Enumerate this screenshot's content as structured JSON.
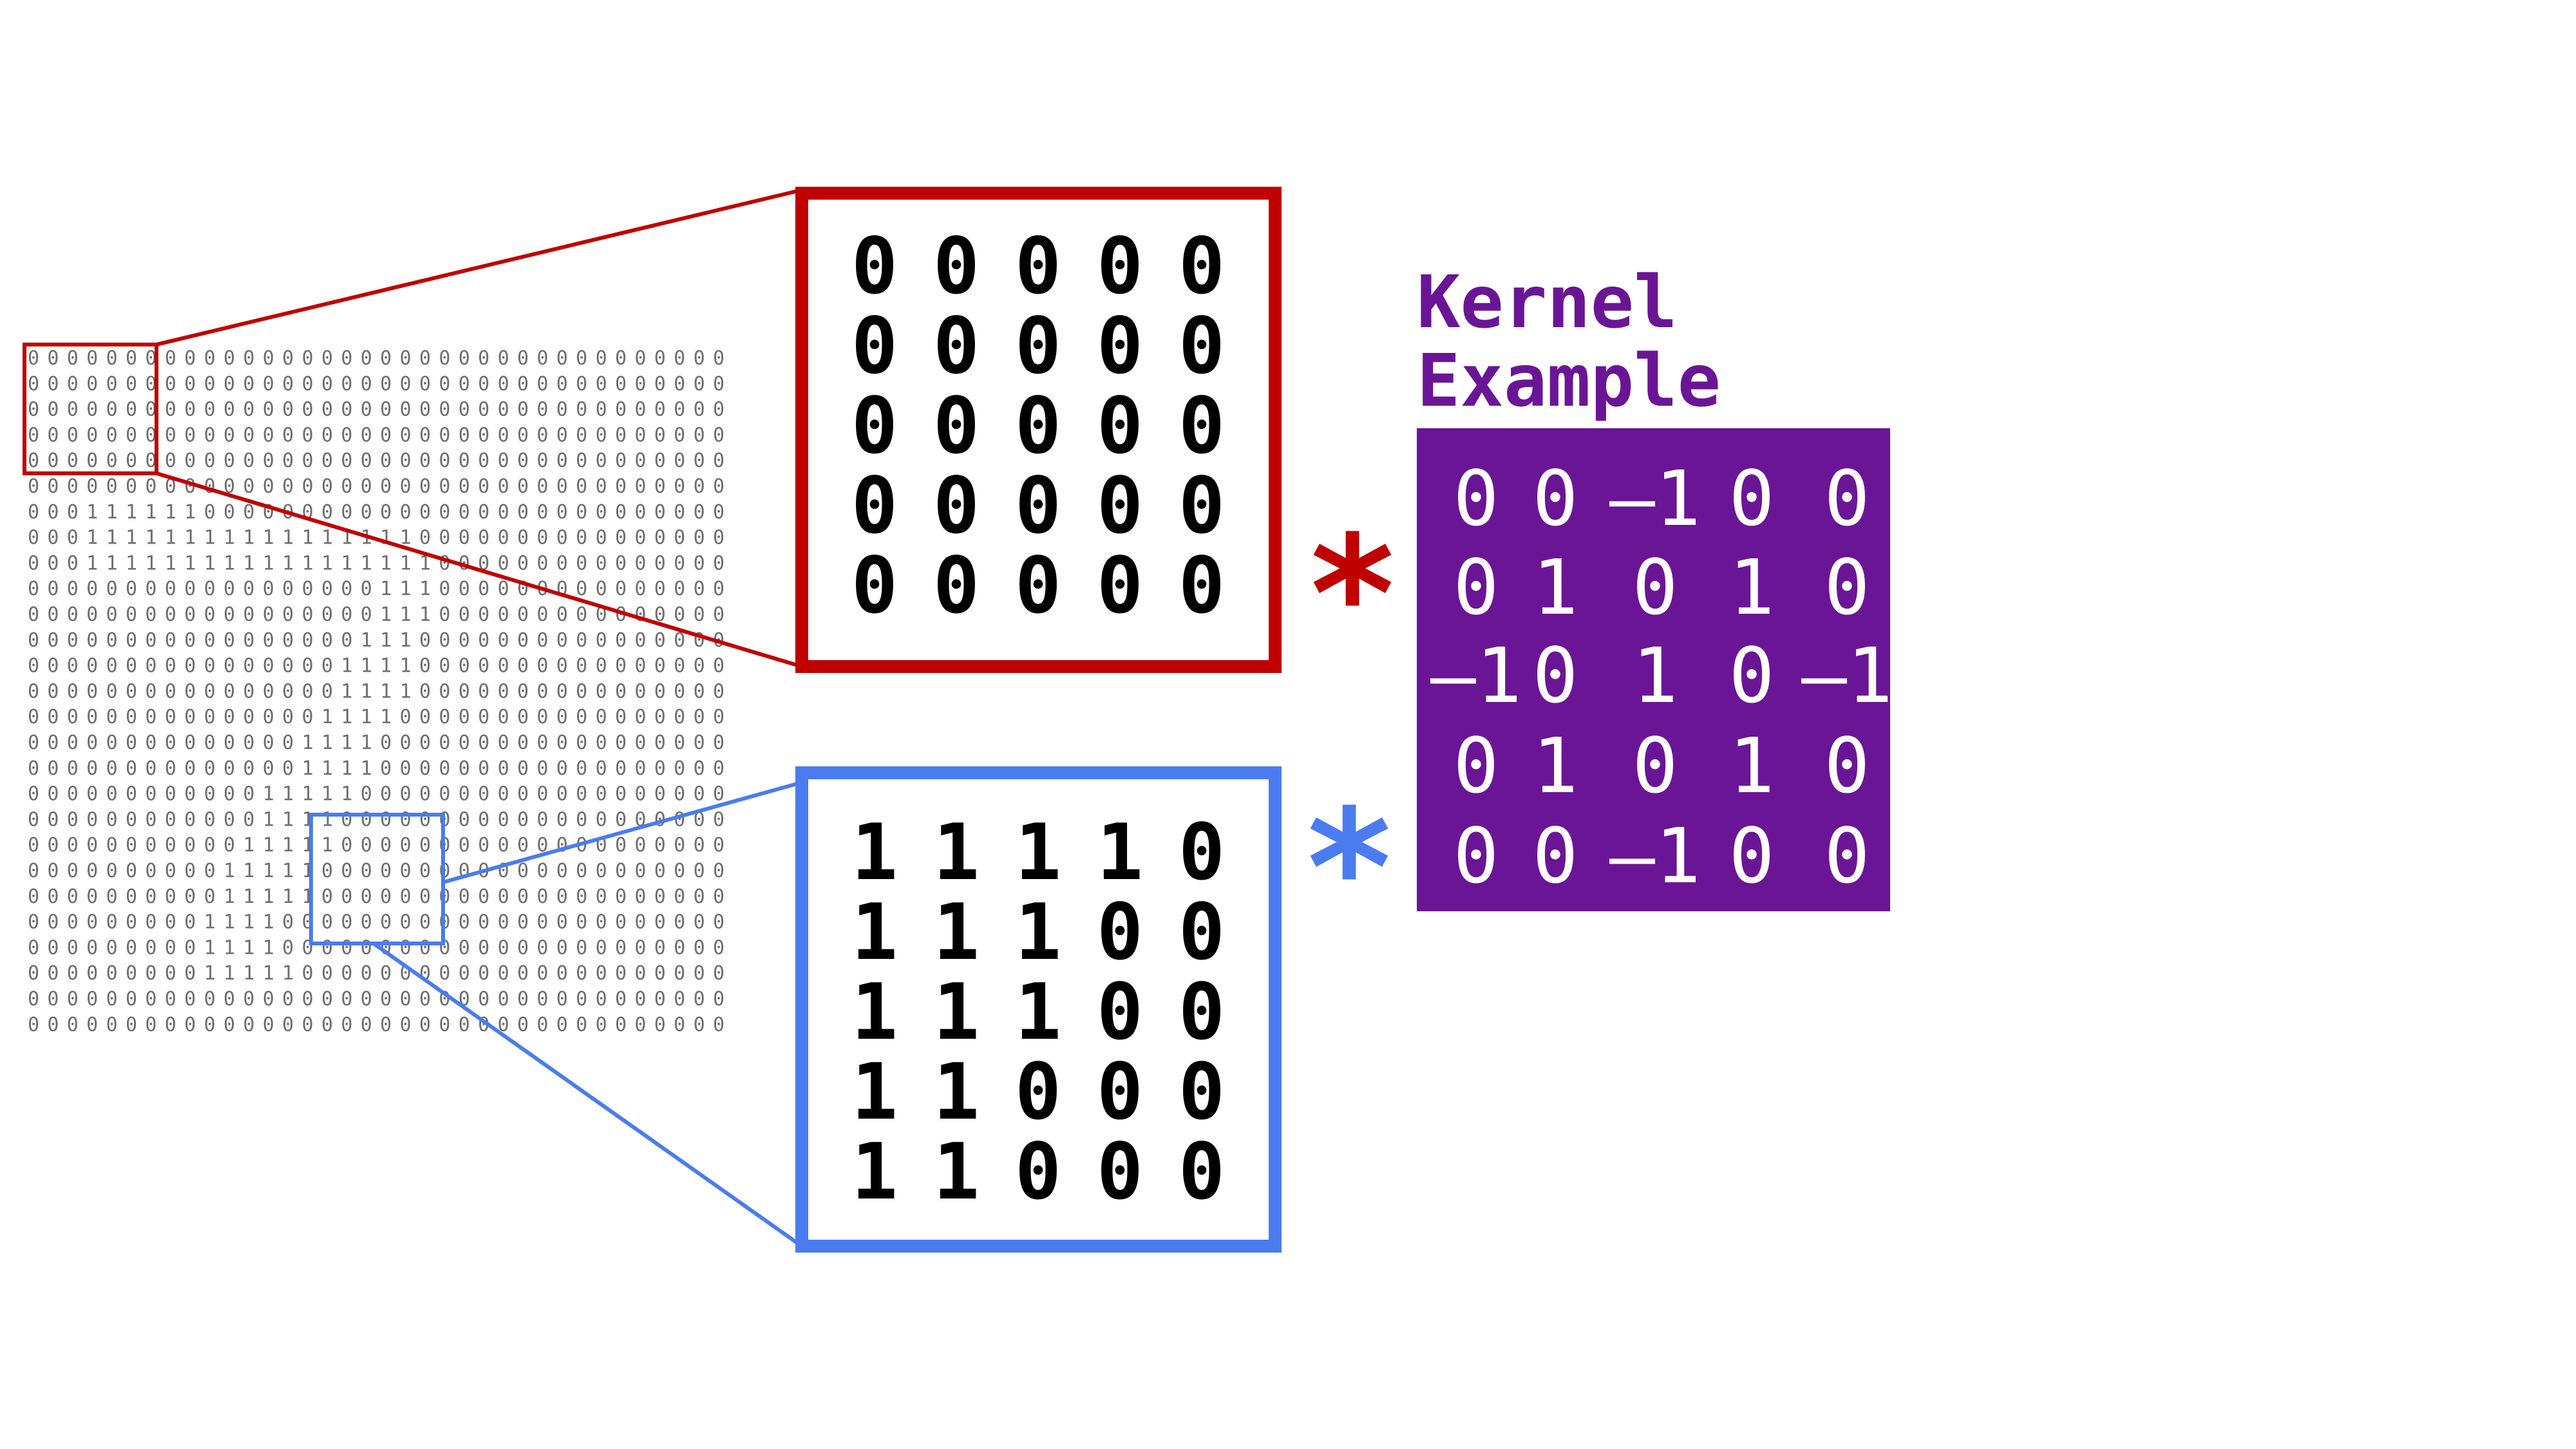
{
  "colors": {
    "red": "#c00000",
    "blue": "#4a7cf0",
    "purple": "#6a1596",
    "grid_digits": "#6e6e6e"
  },
  "input_grid": [
    "000000000000000000000000000000000000",
    "000000000000000000000000000000000000",
    "000000000000000000000000000000000000",
    "000000000000000000000000000000000000",
    "000000000000000000000000000000000000",
    "000000000000000000000000000000000000",
    "000111111000000000000000000000000000",
    "000111111111111111110000000000000000",
    "000111111111111111111000000000000000",
    "000000000000000000111000000000000000",
    "000000000000000000111000000000000000",
    "000000000000000001110000000000000000",
    "000000000000000011110000000000000000",
    "000000000000000011110000000000000000",
    "000000000000000111100000000000000000",
    "000000000000001111000000000000000000",
    "000000000000001111000000000000000000",
    "000000000000111110000000000000000000",
    "000000000000111100000000000000000000",
    "000000000001111100000000000000000000",
    "000000000011111000000000000000000000",
    "000000000011111000000000000000000000",
    "000000000111100000000000000000000000",
    "000000000111100000000000000000000000",
    "000000000111110000000000000000000000",
    "000000000000000000000000000000000000",
    "000000000000000000000000000000000000"
  ],
  "red_patch": [
    [
      "0",
      "0",
      "0",
      "0",
      "0"
    ],
    [
      "0",
      "0",
      "0",
      "0",
      "0"
    ],
    [
      "0",
      "0",
      "0",
      "0",
      "0"
    ],
    [
      "0",
      "0",
      "0",
      "0",
      "0"
    ],
    [
      "0",
      "0",
      "0",
      "0",
      "0"
    ]
  ],
  "blue_patch": [
    [
      "1",
      "1",
      "1",
      "1",
      "0"
    ],
    [
      "1",
      "1",
      "1",
      "0",
      "0"
    ],
    [
      "1",
      "1",
      "1",
      "0",
      "0"
    ],
    [
      "1",
      "1",
      "0",
      "0",
      "0"
    ],
    [
      "1",
      "1",
      "0",
      "0",
      "0"
    ]
  ],
  "operator_symbol": "*",
  "kernel": {
    "title_line1": "Kernel",
    "title_line2": "Example",
    "rows": [
      [
        "0",
        "0",
        "–1",
        "0",
        "0"
      ],
      [
        "0",
        "1",
        "0",
        "1",
        "0"
      ],
      [
        "–1",
        "0",
        "1",
        "0",
        "–1"
      ],
      [
        "0",
        "1",
        "0",
        "1",
        "0"
      ],
      [
        "0",
        "0",
        "–1",
        "0",
        "0"
      ]
    ]
  }
}
